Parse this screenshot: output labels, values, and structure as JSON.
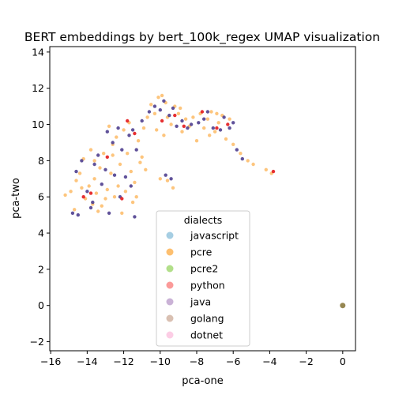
{
  "chart_data": {
    "type": "scatter",
    "title": "BERT embeddings by bert_100k_regex UMAP visualization",
    "xlabel": "pca-one",
    "ylabel": "pca-two",
    "xlim": [
      -16.05,
      0.7
    ],
    "ylim": [
      -2.5,
      14.3
    ],
    "xticks": [
      -16,
      -14,
      -12,
      -10,
      -8,
      -6,
      -4,
      -2,
      0
    ],
    "yticks": [
      -2,
      0,
      2,
      4,
      6,
      8,
      10,
      12,
      14
    ],
    "grid": false,
    "legend": {
      "title": "dialects",
      "placement": "lower center",
      "entries": [
        {
          "name": "javascript",
          "color": "#a6cee3"
        },
        {
          "name": "pcre",
          "color": "#fdbf6f"
        },
        {
          "name": "pcre2",
          "color": "#b2df8a"
        },
        {
          "name": "python",
          "color": "#fb9a99"
        },
        {
          "name": "java",
          "color": "#cab2d6"
        },
        {
          "name": "golang",
          "color": "#d9c0b2"
        },
        {
          "name": "dotnet",
          "color": "#fccde5"
        }
      ]
    },
    "series": [
      {
        "name": "pcre",
        "color": "#fdbf6f",
        "points": [
          [
            -15.2,
            6.1
          ],
          [
            -14.9,
            6.3
          ],
          [
            -14.7,
            5.3
          ],
          [
            -14.6,
            6.9
          ],
          [
            -14.4,
            7.3
          ],
          [
            -14.2,
            8.1
          ],
          [
            -14.1,
            5.9
          ],
          [
            -13.9,
            6.6
          ],
          [
            -13.8,
            8.6
          ],
          [
            -13.7,
            5.6
          ],
          [
            -13.6,
            7.0
          ],
          [
            -13.5,
            6.2
          ],
          [
            -13.4,
            5.2
          ],
          [
            -13.3,
            7.6
          ],
          [
            -13.1,
            8.4
          ],
          [
            -13.0,
            5.9
          ],
          [
            -12.9,
            6.4
          ],
          [
            -12.8,
            9.9
          ],
          [
            -12.7,
            7.3
          ],
          [
            -12.6,
            8.9
          ],
          [
            -12.5,
            6.0
          ],
          [
            -12.4,
            9.3
          ],
          [
            -12.3,
            6.6
          ],
          [
            -12.2,
            7.8
          ],
          [
            -12.0,
            9.7
          ],
          [
            -11.9,
            6.3
          ],
          [
            -11.8,
            8.4
          ],
          [
            -11.7,
            10.1
          ],
          [
            -11.6,
            7.4
          ],
          [
            -11.5,
            5.7
          ],
          [
            -11.4,
            6.8
          ],
          [
            -11.2,
            9.1
          ],
          [
            -11.0,
            8.2
          ],
          [
            -10.9,
            9.8
          ],
          [
            -10.7,
            10.4
          ],
          [
            -10.5,
            11.1
          ],
          [
            -10.3,
            10.6
          ],
          [
            -10.1,
            11.5
          ],
          [
            -9.9,
            11.6
          ],
          [
            -9.7,
            11.2
          ],
          [
            -9.6,
            10.4
          ],
          [
            -9.4,
            10.0
          ],
          [
            -9.2,
            11.0
          ],
          [
            -9.0,
            10.6
          ],
          [
            -8.8,
            9.6
          ],
          [
            -8.6,
            10.3
          ],
          [
            -8.4,
            9.9
          ],
          [
            -8.2,
            10.4
          ],
          [
            -8.0,
            9.1
          ],
          [
            -7.8,
            10.6
          ],
          [
            -7.6,
            9.8
          ],
          [
            -7.4,
            10.3
          ],
          [
            -7.2,
            10.7
          ],
          [
            -7.0,
            9.6
          ],
          [
            -6.8,
            10.1
          ],
          [
            -6.6,
            10.5
          ],
          [
            -6.4,
            9.2
          ],
          [
            -6.2,
            10.3
          ],
          [
            -6.0,
            8.9
          ],
          [
            -5.6,
            8.4
          ],
          [
            -5.2,
            8.0
          ],
          [
            -4.9,
            7.8
          ],
          [
            -4.2,
            7.5
          ],
          [
            -3.9,
            7.3
          ],
          [
            -10.0,
            7.0
          ],
          [
            -9.6,
            6.9
          ],
          [
            -9.3,
            6.5
          ],
          [
            -14.3,
            6.5
          ],
          [
            -13.2,
            5.5
          ],
          [
            -12.1,
            5.1
          ],
          [
            -11.3,
            6.0
          ],
          [
            -10.8,
            7.5
          ],
          [
            -11.1,
            7.9
          ],
          [
            -12.6,
            8.3
          ],
          [
            -13.6,
            8.0
          ],
          [
            -9.8,
            9.4
          ],
          [
            -10.2,
            9.7
          ],
          [
            -8.9,
            10.9
          ],
          [
            -7.3,
            9.4
          ],
          [
            -6.9,
            10.6
          ]
        ]
      },
      {
        "name": "java",
        "color": "#4f3f8f",
        "points": [
          [
            -14.8,
            5.1
          ],
          [
            -14.6,
            7.4
          ],
          [
            -14.3,
            8.0
          ],
          [
            -14.0,
            6.3
          ],
          [
            -13.8,
            5.4
          ],
          [
            -13.6,
            7.8
          ],
          [
            -13.4,
            8.3
          ],
          [
            -13.2,
            6.7
          ],
          [
            -13.0,
            7.5
          ],
          [
            -12.9,
            9.6
          ],
          [
            -12.8,
            5.1
          ],
          [
            -12.6,
            9.0
          ],
          [
            -12.5,
            7.2
          ],
          [
            -12.3,
            9.8
          ],
          [
            -12.1,
            8.6
          ],
          [
            -11.9,
            7.1
          ],
          [
            -11.7,
            9.4
          ],
          [
            -11.5,
            9.7
          ],
          [
            -11.3,
            8.6
          ],
          [
            -11.6,
            6.6
          ],
          [
            -11.4,
            4.9
          ],
          [
            -10.3,
            11.0
          ],
          [
            -10.0,
            10.8
          ],
          [
            -9.8,
            11.3
          ],
          [
            -9.5,
            10.5
          ],
          [
            -9.3,
            10.9
          ],
          [
            -9.1,
            9.9
          ],
          [
            -8.8,
            10.2
          ],
          [
            -8.5,
            9.8
          ],
          [
            -8.3,
            10.0
          ],
          [
            -7.9,
            10.1
          ],
          [
            -7.6,
            10.3
          ],
          [
            -7.4,
            10.7
          ],
          [
            -7.1,
            9.8
          ],
          [
            -6.7,
            9.7
          ],
          [
            -6.5,
            10.4
          ],
          [
            -6.2,
            9.8
          ],
          [
            -6.0,
            10.1
          ],
          [
            -5.8,
            8.6
          ],
          [
            -5.5,
            8.1
          ],
          [
            -9.7,
            7.2
          ],
          [
            -9.4,
            7.0
          ],
          [
            -13.7,
            5.7
          ],
          [
            -12.2,
            6.0
          ],
          [
            -14.5,
            5.0
          ],
          [
            -11.0,
            10.2
          ],
          [
            -10.6,
            10.7
          ]
        ]
      },
      {
        "name": "python",
        "color": "#e31a1c",
        "points": [
          [
            -13.8,
            6.2
          ],
          [
            -12.1,
            5.9
          ],
          [
            -11.8,
            10.2
          ],
          [
            -11.4,
            9.5
          ],
          [
            -9.9,
            10.2
          ],
          [
            -9.2,
            10.5
          ],
          [
            -8.7,
            9.9
          ],
          [
            -7.7,
            10.7
          ],
          [
            -6.9,
            9.8
          ],
          [
            -6.3,
            10.0
          ],
          [
            -3.8,
            7.4
          ],
          [
            -12.9,
            8.2
          ],
          [
            -14.2,
            6.0
          ]
        ]
      },
      {
        "name": "golang",
        "color": "#8b7a3f",
        "points": [
          [
            0.0,
            0.0
          ]
        ]
      }
    ]
  }
}
